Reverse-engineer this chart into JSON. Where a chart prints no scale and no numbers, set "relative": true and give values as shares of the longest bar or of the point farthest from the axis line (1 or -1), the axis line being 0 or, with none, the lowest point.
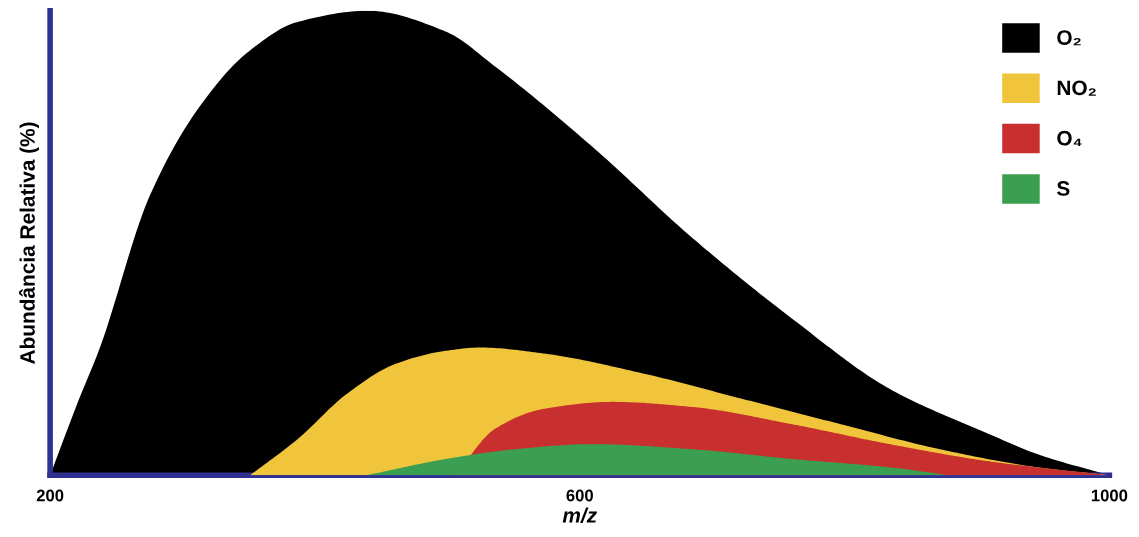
{
  "chart_data": {
    "type": "area",
    "relative": true,
    "xlabel": "m/z",
    "ylabel": "Abundância Relativa (%)",
    "xlim": [
      200,
      1000
    ],
    "xticks": [
      200,
      600,
      1000
    ],
    "legend": "top right",
    "grid": false,
    "series": [
      {
        "name": "O₂",
        "color": "#000000",
        "x": [
          200,
          222,
          237,
          275,
          312,
          349,
          387,
          440,
          499,
          536,
          610,
          685,
          760,
          834,
          909,
          946,
          1000
        ],
        "values": [
          0,
          0.165,
          0.27,
          0.6,
          0.79,
          0.91,
          0.976,
          1,
          0.955,
          0.88,
          0.706,
          0.511,
          0.338,
          0.186,
          0.089,
          0.045,
          0
        ]
      },
      {
        "name": "NO₂",
        "color": "#f0c53c",
        "x": [
          351,
          387,
          424,
          461,
          499,
          525,
          573,
          648,
          722,
          797,
          872,
          946,
          1000
        ],
        "values": [
          0,
          0.078,
          0.175,
          0.24,
          0.268,
          0.275,
          0.262,
          0.219,
          0.165,
          0.11,
          0.056,
          0.017,
          0
        ]
      },
      {
        "name": "O₄",
        "color": "#c8302f",
        "x": [
          506,
          536,
          573,
          625,
          685,
          760,
          834,
          909,
          1000
        ],
        "values": [
          0,
          0.1,
          0.143,
          0.158,
          0.147,
          0.11,
          0.067,
          0.03,
          0
        ]
      },
      {
        "name": "S",
        "color": "#3a9f50",
        "x": [
          439,
          499,
          551,
          610,
          685,
          760,
          834,
          879
        ],
        "values": [
          0,
          0.035,
          0.056,
          0.067,
          0.056,
          0.035,
          0.017,
          0
        ]
      }
    ]
  }
}
